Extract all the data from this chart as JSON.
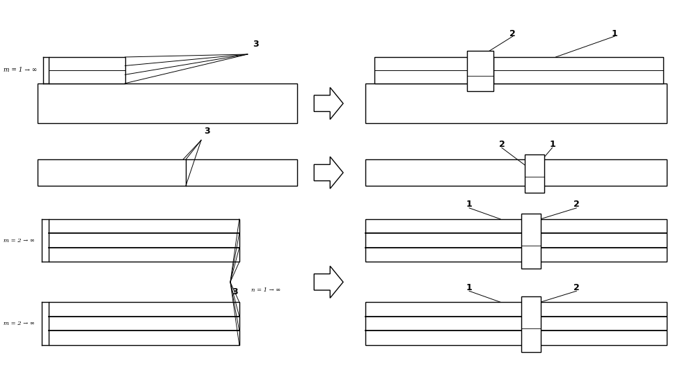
{
  "bg_color": "#ffffff",
  "line_color": "#000000",
  "lw": 1.0,
  "fig_width": 10.0,
  "fig_height": 5.49
}
